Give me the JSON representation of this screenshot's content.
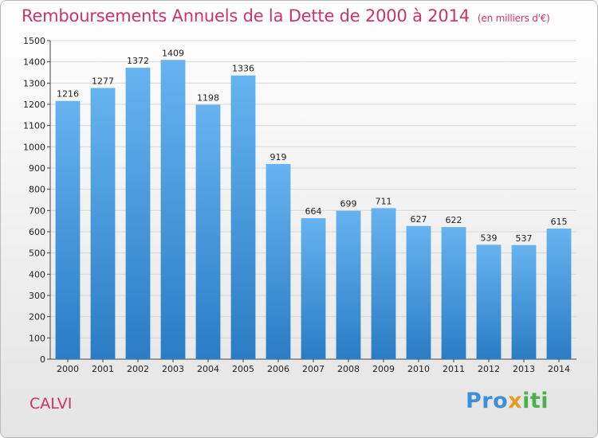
{
  "header": {
    "title": "Remboursements Annuels de la Dette de 2000 à 2014",
    "unit": "(en milliers d'€)"
  },
  "footer": {
    "city": "CALVI",
    "logo": {
      "part1": "Pro",
      "part2": "x",
      "part3": "iti"
    }
  },
  "chart_data": {
    "type": "bar",
    "title": "Remboursements Annuels de la Dette de 2000 à 2014",
    "subtitle": "(en milliers d'€)",
    "xlabel": "",
    "ylabel": "",
    "categories": [
      "2000",
      "2001",
      "2002",
      "2003",
      "2004",
      "2005",
      "2006",
      "2007",
      "2008",
      "2009",
      "2010",
      "2011",
      "2012",
      "2013",
      "2014"
    ],
    "values": [
      1216,
      1277,
      1372,
      1409,
      1198,
      1336,
      919,
      664,
      699,
      711,
      627,
      622,
      539,
      537,
      615
    ],
    "ylim": [
      0,
      1500
    ],
    "yticks": [
      0,
      100,
      200,
      300,
      400,
      500,
      600,
      700,
      800,
      900,
      1000,
      1100,
      1200,
      1300,
      1400,
      1500
    ],
    "grid": true,
    "legend": "none",
    "colors": {
      "bar_top": "#66b3f0",
      "bar_bottom": "#2a7cc4",
      "grid": "#d8d8d8"
    }
  }
}
